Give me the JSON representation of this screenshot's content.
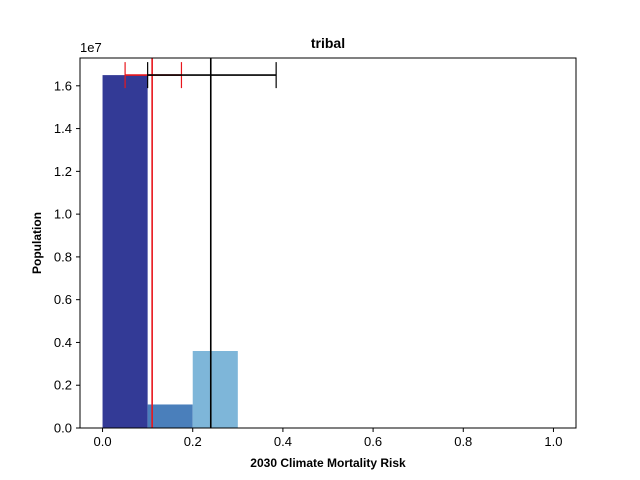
{
  "chart_data": {
    "type": "bar",
    "title": "tribal",
    "xlabel": "2030 Climate Mortality Risk",
    "ylabel": "Population",
    "y_scale_label": "1e7",
    "y_multiplier": 10000000,
    "xlim": [
      -0.05,
      1.05
    ],
    "ylim": [
      0,
      17300000
    ],
    "x_ticks": [
      0.0,
      0.2,
      0.4,
      0.6,
      0.8,
      1.0
    ],
    "x_tick_labels": [
      "0.0",
      "0.2",
      "0.4",
      "0.6",
      "0.8",
      "1.0"
    ],
    "y_ticks": [
      0,
      2000000,
      4000000,
      6000000,
      8000000,
      10000000,
      12000000,
      14000000,
      16000000
    ],
    "y_tick_labels": [
      "0.0",
      "0.2",
      "0.4",
      "0.6",
      "0.8",
      "1.0",
      "1.2",
      "1.4",
      "1.6"
    ],
    "grid": false,
    "bins": [
      {
        "x0": 0.0,
        "x1": 0.1,
        "value": 16500000,
        "color": "#333a96"
      },
      {
        "x0": 0.1,
        "x1": 0.2,
        "value": 1100000,
        "color": "#4a7fbb"
      },
      {
        "x0": 0.2,
        "x1": 0.3,
        "value": 3600000,
        "color": "#7eb6d9"
      }
    ],
    "reference_lines": [
      {
        "x": 0.11,
        "y": 16500000,
        "err_left": 0.05,
        "err_right": 0.175,
        "color": "#e8161c"
      },
      {
        "x": 0.24,
        "y": 16500000,
        "err_left": 0.1,
        "err_right": 0.385,
        "color": "#000000"
      }
    ]
  }
}
